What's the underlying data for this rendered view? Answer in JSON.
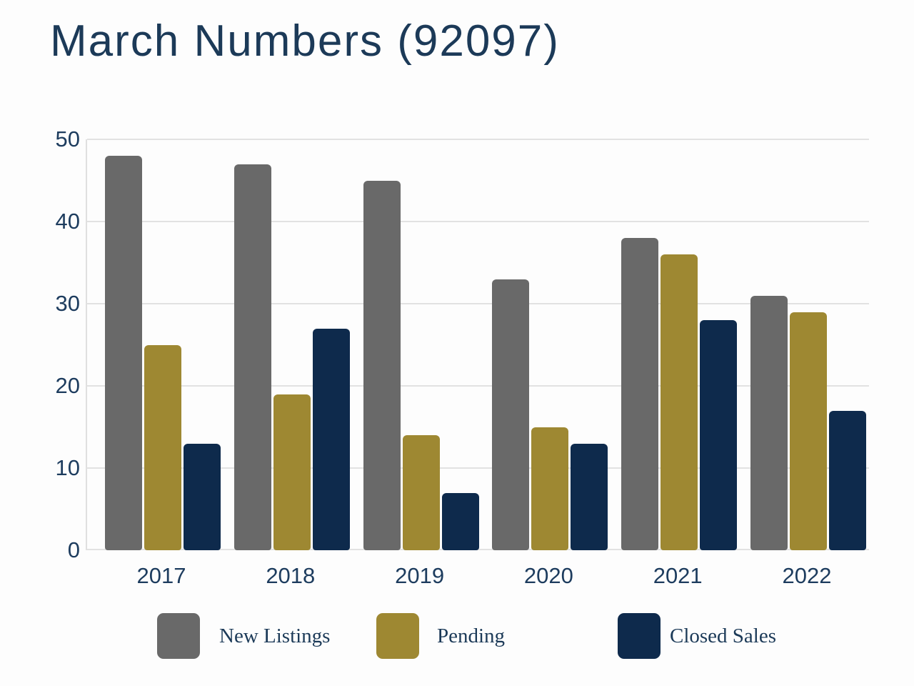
{
  "title": "March Numbers (92097)",
  "chart_data": {
    "type": "bar",
    "title": "March Numbers (92097)",
    "categories": [
      "2017",
      "2018",
      "2019",
      "2020",
      "2021",
      "2022"
    ],
    "series": [
      {
        "name": "New Listings",
        "color": "#696969",
        "values": [
          48,
          47,
          45,
          33,
          38,
          31
        ]
      },
      {
        "name": "Pending",
        "color": "#9e8832",
        "values": [
          25,
          19,
          14,
          15,
          36,
          29
        ]
      },
      {
        "name": "Closed Sales",
        "color": "#0e2a4c",
        "values": [
          13,
          27,
          7,
          13,
          28,
          17
        ]
      }
    ],
    "xlabel": "",
    "ylabel": "",
    "ylim": [
      0,
      50
    ],
    "yticks": [
      0,
      10,
      20,
      30,
      40,
      50
    ],
    "grid": true,
    "legend_position": "bottom"
  },
  "colors": {
    "text": "#1c3a58",
    "gridline": "#e2e2e2",
    "background": "#fdfdfd"
  }
}
